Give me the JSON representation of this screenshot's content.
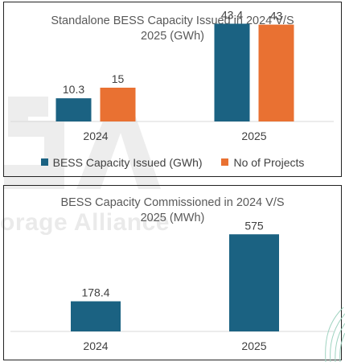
{
  "colors": {
    "capacity": "#1b6282",
    "projects": "#e97132",
    "axis": "#d9d9d9",
    "text": "#595959"
  },
  "watermark": {
    "text": "orage Alliance",
    "icon": "ies-logo-watermark"
  },
  "chart_data": [
    {
      "type": "bar",
      "title_lines": [
        "Standalone BESS Capacity Issued in 2024 V/S",
        "2025 (GWh)"
      ],
      "categories": [
        "2024",
        "2025"
      ],
      "series": [
        {
          "name": "BESS Capacity Issued (GWh)",
          "values": [
            10.3,
            43.4
          ],
          "color": "#1b6282"
        },
        {
          "name": "No of Projects",
          "values": [
            15,
            43
          ],
          "color": "#e97132"
        }
      ],
      "value_labels": [
        [
          "10.3",
          "43.4"
        ],
        [
          "15",
          "43"
        ]
      ],
      "ylim": [
        0,
        50
      ],
      "legend": "bottom",
      "grid": false
    },
    {
      "type": "bar",
      "title_lines": [
        "BESS Capacity Commissioned in 2024 V/S",
        "2025  (MWh)"
      ],
      "categories": [
        "2024",
        "2025"
      ],
      "series": [
        {
          "values": [
            178.4,
            575
          ],
          "color": "#1b6282"
        }
      ],
      "value_labels": [
        [
          "178.4",
          "575"
        ]
      ],
      "ylim": [
        0,
        700
      ],
      "legend": "none",
      "grid": false
    }
  ]
}
